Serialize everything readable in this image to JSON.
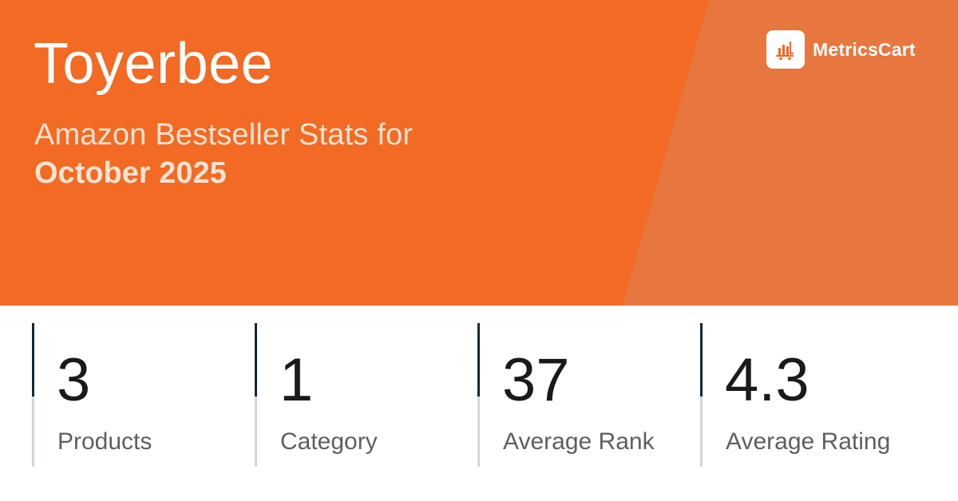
{
  "header": {
    "title": "Toyerbee",
    "subtitle": "Amazon Bestseller Stats for",
    "period": "October 2025"
  },
  "logo": {
    "icon": "bar-chart-cart-icon",
    "text": "MetricsCart"
  },
  "stats": [
    {
      "value": "3",
      "label": "Products"
    },
    {
      "value": "1",
      "label": "Category"
    },
    {
      "value": "37",
      "label": "Average Rank"
    },
    {
      "value": "4.3",
      "label": "Average Rating"
    }
  ],
  "colors": {
    "accent": "#f26a23",
    "accent_light": "#e8763f",
    "stat_bar_dark": "#0e2a3a"
  }
}
